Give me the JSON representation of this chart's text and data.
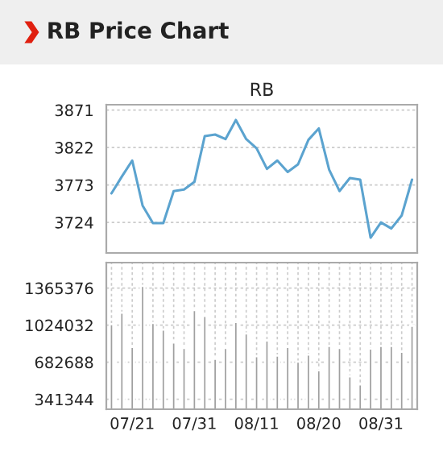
{
  "chart_data": [
    {
      "type": "line",
      "title": "RB",
      "annotations": [
        "RB Price Chart"
      ],
      "categories": [
        null,
        null,
        null,
        null,
        null,
        null,
        null,
        null,
        null,
        null,
        null,
        null,
        null,
        null,
        null,
        null,
        null,
        null,
        null,
        null,
        null,
        null,
        null,
        null,
        null,
        null,
        null,
        null,
        null,
        null
      ],
      "series": [
        {
          "color": "#5ba3cf",
          "values": [
            3762,
            3784,
            3805,
            3746,
            3723,
            3723,
            3765,
            3767,
            3777,
            3837,
            3839,
            3833,
            3858,
            3833,
            3821,
            3794,
            3805,
            3790,
            3800,
            3832,
            3847,
            3793,
            3765,
            3782,
            3780,
            3704,
            3724,
            3716,
            3733,
            3780
          ]
        }
      ],
      "ylim": [
        3684,
        3878
      ],
      "yticks": [
        3724,
        3773,
        3822,
        3871
      ],
      "grid": "y",
      "tick_labels": "y"
    },
    {
      "type": "bar",
      "categories": [
        null,
        null,
        "07/21",
        null,
        null,
        null,
        null,
        null,
        "07/31",
        null,
        null,
        null,
        null,
        null,
        "08/11",
        null,
        null,
        null,
        null,
        null,
        "08/20",
        null,
        null,
        null,
        null,
        null,
        "08/31",
        null,
        null,
        null
      ],
      "series": [
        {
          "color": "#a0a0a0",
          "values": [
            1034000,
            1139000,
            824000,
            1385000,
            1044000,
            984000,
            864000,
            814000,
            1164000,
            1109000,
            714000,
            814000,
            1054000,
            949000,
            739000,
            884000,
            744000,
            824000,
            689000,
            754000,
            609000,
            834000,
            814000,
            554000,
            479000,
            809000,
            834000,
            834000,
            779000,
            1019000
          ]
        }
      ],
      "ylim": [
        250000,
        1600000
      ],
      "yticks": [
        341344,
        682688,
        1024032,
        1365376
      ],
      "grid": true
    }
  ]
}
